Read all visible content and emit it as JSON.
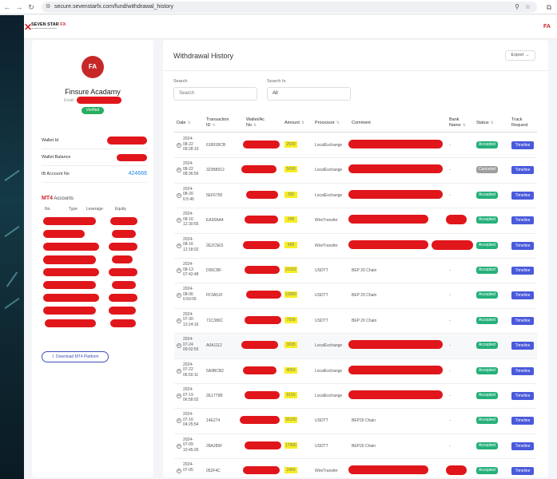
{
  "browser": {
    "url": "secure.sevenstarfx.com/fund/withdrawal_history"
  },
  "header": {
    "logo_main": "SEVEN STAR",
    "logo_fx": "FX",
    "user_initials": "FA"
  },
  "profile": {
    "initials": "FA",
    "name": "Finsure Acadamy",
    "email_label": "Email",
    "verified": "Verified",
    "wallet_id_label": "Wallet Id",
    "wallet_balance_label": "Wallet Balance",
    "ib_account_label": "IB Account No",
    "ib_account_value": "424666",
    "mt4_logo_prefix": "MT",
    "mt4_logo_suffix": "4",
    "mt4_accounts_label": "Accounts",
    "mt4_columns": [
      "No.",
      "Type",
      "Leverage",
      "Equity"
    ],
    "download_label": "Download MT4 Platform"
  },
  "withdrawal": {
    "title": "Withdrawal History",
    "export_label": "Export →",
    "search_label": "Search",
    "search_placeholder": "Search",
    "search_in_label": "Search In",
    "search_in_value": "All",
    "columns": {
      "date": "Date",
      "transaction_id_line1": "Transaction",
      "transaction_id_line2": "ID",
      "wallet_line1": "Wallet/Ac",
      "wallet_line2": "No",
      "amount": "Amount",
      "processor": "Processor",
      "comment": "Comment",
      "bank_line1": "Bank",
      "bank_line2": "Name",
      "status": "Status",
      "track_line1": "Track",
      "track_line2": "Request"
    },
    "rows": [
      {
        "date": [
          "2024-",
          "08-22",
          "09:28:10"
        ],
        "txn": "61891BCB",
        "amount": "2500",
        "processor": "LocalExchange",
        "comment": "",
        "bank": "-",
        "status": "Accepted",
        "timeline": "Timeline"
      },
      {
        "date": [
          "2024-",
          "08-22",
          "08:36:56"
        ],
        "txn": "323B8912",
        "amount": "5000",
        "processor": "LocalExchange",
        "comment": "",
        "bank": "-",
        "status": "Canceled",
        "timeline": "Timeline"
      },
      {
        "date": [
          "2024-",
          "08-20",
          "6:5:46"
        ],
        "txn": "5EF6750",
        "amount": "305",
        "processor": "LocalExchange",
        "comment": "",
        "bank": "-",
        "status": "Accepted",
        "timeline": "Timeline"
      },
      {
        "date": [
          "2024-",
          "08-16",
          "12:30:55"
        ],
        "txn": "EA30AA4",
        "amount": "398",
        "processor": "WireTransfer",
        "comment": "",
        "bank": "",
        "status": "Accepted",
        "timeline": "Timeline"
      },
      {
        "date": [
          "2024-",
          "08-16",
          "12:18:02"
        ],
        "txn": "2E2C5E5",
        "amount": "999",
        "processor": "WireTransfer",
        "comment": "",
        "bank": "",
        "status": "Accepted",
        "timeline": "Timeline"
      },
      {
        "date": [
          "2024-",
          "08-13",
          "07:42:48"
        ],
        "txn": "D95CBF",
        "amount": "22102",
        "processor": "USDTT",
        "comment": "BEP 20 Chain",
        "bank": "-",
        "status": "Accepted",
        "timeline": "Timeline"
      },
      {
        "date": [
          "2024-",
          "08-06",
          "6:50:05"
        ],
        "txn": "FF3A51F",
        "amount": "10000",
        "processor": "USDTT",
        "comment": "BEP 20 Chain",
        "bank": "-",
        "status": "Accepted",
        "timeline": "Timeline"
      },
      {
        "date": [
          "2024-",
          "07-30",
          "13:24:16"
        ],
        "txn": "71C386C",
        "amount": "7500",
        "processor": "USDTT",
        "comment": "BEP 20 Chain",
        "bank": "-",
        "status": "Accepted",
        "timeline": "Timeline"
      },
      {
        "date": [
          "2024-",
          "07-24",
          "09:02:55"
        ],
        "txn": "A0A1112",
        "amount": "3005",
        "processor": "LocalExchange",
        "comment": "",
        "bank": "-",
        "status": "Accepted",
        "timeline": "Timeline"
      },
      {
        "date": [
          "2024-",
          "07-22",
          "06:50:11"
        ],
        "txn": "5A9BCB2",
        "amount": "4050",
        "processor": "LocalExchange",
        "comment": "",
        "bank": "-",
        "status": "Accepted",
        "timeline": "Timeline"
      },
      {
        "date": [
          "2024-",
          "07-19",
          "06:58:02"
        ],
        "txn": "2E1776B",
        "amount": "9150",
        "processor": "LocalExchange",
        "comment": "",
        "bank": "-",
        "status": "Accepted",
        "timeline": "Timeline"
      },
      {
        "date": [
          "2024-",
          "07-16",
          "04:25:54"
        ],
        "txn": "14E274",
        "amount": "35100",
        "processor": "USDTT",
        "comment": "BEP20 Chain",
        "bank": "-",
        "status": "Accepted",
        "timeline": "Timeline"
      },
      {
        "date": [
          "2024-",
          "07-09",
          "10:45:26"
        ],
        "txn": "28A285F",
        "amount": "17400",
        "processor": "USDTT",
        "comment": "BEP20 Chain",
        "bank": "-",
        "status": "Accepted",
        "timeline": "Timeline"
      },
      {
        "date": [
          "2024-",
          "07-05",
          ""
        ],
        "txn": "052F4C",
        "amount": "2400",
        "processor": "WireTransfer",
        "comment": "",
        "bank": "",
        "status": "Accepted",
        "timeline": "Timeline"
      }
    ]
  },
  "colors": {
    "brand_red": "#c9252c",
    "accepted": "#26b07a",
    "canceled": "#9e9e9e",
    "timeline": "#4a5adb",
    "link_blue": "#1e88e5"
  },
  "icons": [
    "back-arrow-icon",
    "forward-arrow-icon",
    "reload-icon",
    "site-info-icon",
    "zoom-icon",
    "bookmark-star-icon",
    "extensions-icon",
    "expand-plus-icon",
    "sort-icon"
  ]
}
